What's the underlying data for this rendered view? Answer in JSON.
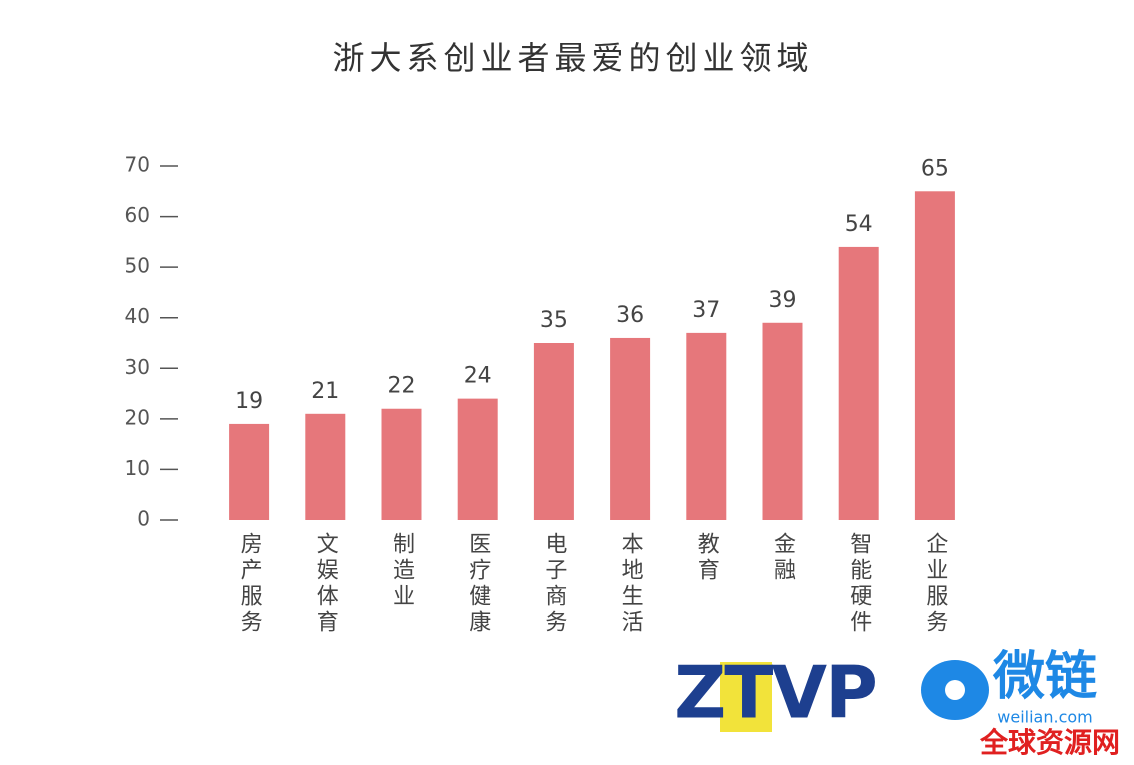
{
  "chart_data": {
    "type": "bar",
    "title": "浙大系创业者最爱的创业领域",
    "categories": [
      "房产服务",
      "文娱体育",
      "制造业",
      "医疗健康",
      "电子商务",
      "本地生活",
      "教育",
      "金融",
      "智能硬件",
      "企业服务"
    ],
    "values": [
      19,
      21,
      22,
      24,
      35,
      36,
      37,
      39,
      54,
      65
    ],
    "color": "#e6777b",
    "ylim": [
      0,
      70
    ],
    "yticks": [
      0,
      10,
      20,
      30,
      40,
      50,
      60,
      70
    ],
    "grid": false
  },
  "watermark": {
    "brand": "ZTVP",
    "logo": "微链",
    "url": "weilian.com",
    "site": "全球资源网"
  }
}
